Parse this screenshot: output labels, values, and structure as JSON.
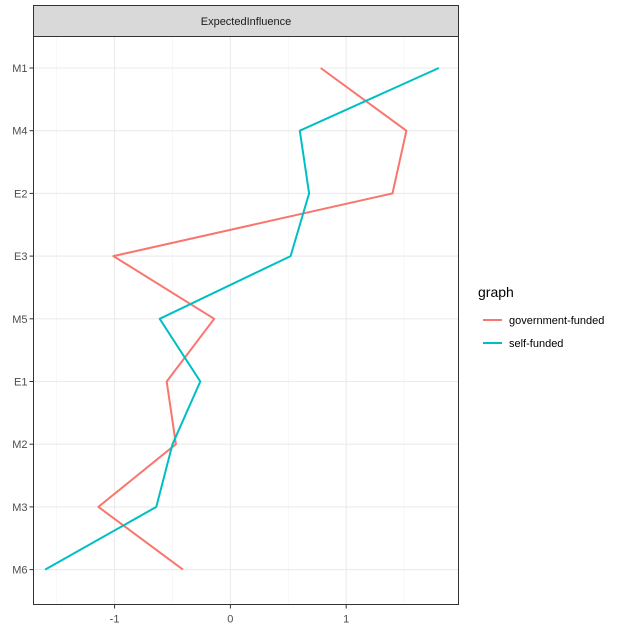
{
  "chart_data": {
    "type": "line",
    "facet_title": "ExpectedInfluence",
    "categories": [
      "M1",
      "M4",
      "E2",
      "E3",
      "M5",
      "E1",
      "M2",
      "M3",
      "M6"
    ],
    "xlim": [
      -1.7,
      1.97
    ],
    "x_ticks": [
      -1,
      0,
      1
    ],
    "x_tick_labels": [
      "-1",
      "0",
      "1"
    ],
    "grid": true,
    "legend_position": "right",
    "legend": {
      "title": "graph"
    },
    "series": [
      {
        "name": "government-funded",
        "color": "#F8766D",
        "values": [
          0.78,
          1.52,
          1.4,
          -1.01,
          -0.14,
          -0.55,
          -0.47,
          -1.14,
          -0.41
        ]
      },
      {
        "name": "self-funded",
        "color": "#00BFC4",
        "values": [
          1.8,
          0.6,
          0.68,
          0.52,
          -0.61,
          -0.26,
          -0.5,
          -0.64,
          -1.6
        ]
      }
    ]
  }
}
